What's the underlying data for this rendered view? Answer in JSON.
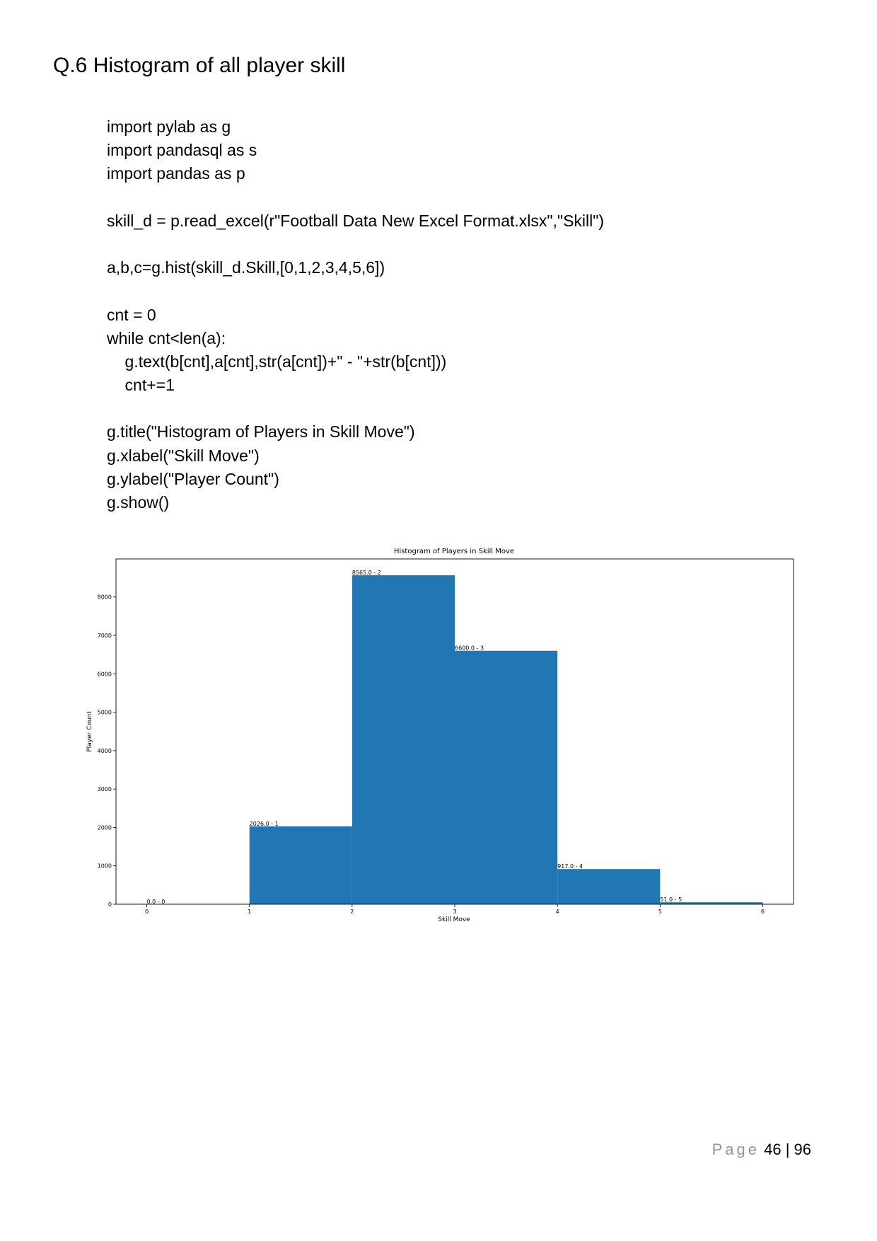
{
  "heading": "Q.6 Histogram of all player skill",
  "code_lines": [
    "import pylab as g",
    "import pandasql as s",
    "import pandas as p",
    "",
    "skill_d = p.read_excel(r\"Football Data New Excel Format.xlsx\",\"Skill\")",
    "",
    "a,b,c=g.hist(skill_d.Skill,[0,1,2,3,4,5,6])",
    "",
    "cnt = 0",
    "while cnt<len(a):",
    "    g.text(b[cnt],a[cnt],str(a[cnt])+\" - \"+str(b[cnt]))",
    "    cnt+=1",
    "",
    "g.title(\"Histogram of Players in Skill Move\")",
    "g.xlabel(\"Skill Move\")",
    "g.ylabel(\"Player Count\")",
    "g.show()"
  ],
  "chart_data": {
    "type": "bar",
    "title": "Histogram of Players in Skill Move",
    "xlabel": "Skill Move",
    "ylabel": "Player Count",
    "bin_edges": [
      0,
      1,
      2,
      3,
      4,
      5,
      6
    ],
    "values": [
      0,
      2026,
      8565,
      6600,
      917,
      51
    ],
    "data_labels": [
      "0.0 - 0",
      "2026.0 - 1",
      "8565.0 - 2",
      "6600.0 - 3",
      "917.0 - 4",
      "51.0 - 5"
    ],
    "xlim": [
      -0.3,
      6.3
    ],
    "ylim": [
      0,
      8990
    ],
    "x_ticks": [
      0,
      1,
      2,
      3,
      4,
      5,
      6
    ],
    "y_ticks": [
      0,
      1000,
      2000,
      3000,
      4000,
      5000,
      6000,
      7000,
      8000
    ],
    "bar_color": "#2077b4",
    "grid": false,
    "legend": false
  },
  "footer": {
    "page_label": "Page",
    "page_number": "46 | 96"
  }
}
